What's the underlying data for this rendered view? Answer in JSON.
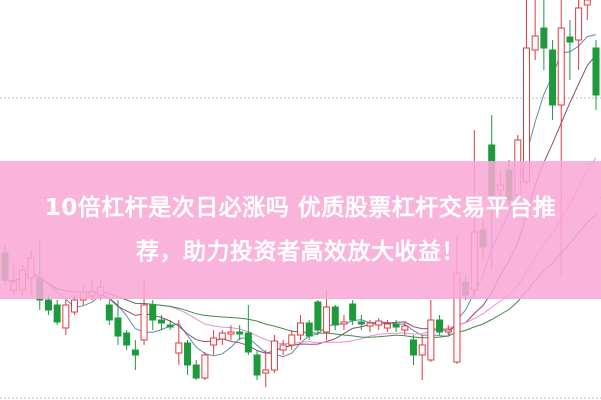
{
  "banner": {
    "line1": "10倍杠杆是次日必涨吗 优质股票杠杆交易平台推",
    "line2": "荐，助力投资者高效放大收益！"
  },
  "chart_data": {
    "type": "candlestick",
    "title": "",
    "xlabel": "",
    "ylabel": "",
    "ylim": [
      0,
      40
    ],
    "grid": true,
    "gridlines_y": [
      10,
      20,
      30
    ],
    "colors": {
      "up": "#e2393f",
      "down": "#1d9a3c",
      "grid": "#b9b9b9",
      "banner": "#f9a8d6"
    },
    "moving_averages": [
      {
        "period": 5,
        "color": "#5b8fa8"
      },
      {
        "period": 10,
        "color": "#8a4a78"
      },
      {
        "period": 20,
        "color": "#e98fd0"
      },
      {
        "period": 30,
        "color": "#3f8a4c"
      }
    ],
    "candles_ochl": [
      [
        14.7,
        12.0,
        15.5,
        11.5
      ],
      [
        11.0,
        11.8,
        13.5,
        10.5
      ],
      [
        11.0,
        13.0,
        13.5,
        10.5
      ],
      [
        12.2,
        14.2,
        15.0,
        10.5
      ],
      [
        12.2,
        10.0,
        16.0,
        9.0
      ],
      [
        10.0,
        9.0,
        10.5,
        8.5
      ],
      [
        9.5,
        7.8,
        10.0,
        7.5
      ],
      [
        7.2,
        9.5,
        10.0,
        6.5
      ],
      [
        8.8,
        10.0,
        10.5,
        8.5
      ],
      [
        10.0,
        10.8,
        11.5,
        9.5
      ],
      [
        10.4,
        10.8,
        12.0,
        10.0
      ],
      [
        10.5,
        11.3,
        12.0,
        10.0
      ],
      [
        9.5,
        8.0,
        10.0,
        7.5
      ],
      [
        8.2,
        6.4,
        10.0,
        5.5
      ],
      [
        6.7,
        5.5,
        7.0,
        5.0
      ],
      [
        5.0,
        4.5,
        6.0,
        3.0
      ],
      [
        6.0,
        9.5,
        12.0,
        5.5
      ],
      [
        9.5,
        8.0,
        10.0,
        7.0
      ],
      [
        8.0,
        7.7,
        8.5,
        7.0
      ],
      [
        7.5,
        7.3,
        8.0,
        7.0
      ],
      [
        4.7,
        5.7,
        8.0,
        3.5
      ],
      [
        5.7,
        3.5,
        6.0,
        2.5
      ],
      [
        3.5,
        2.2,
        4.0,
        2.0
      ],
      [
        2.2,
        4.5,
        4.8,
        2.0
      ],
      [
        5.5,
        6.2,
        7.0,
        4.5
      ],
      [
        6.1,
        6.7,
        7.0,
        5.5
      ],
      [
        6.6,
        6.8,
        7.5,
        6.0
      ],
      [
        6.8,
        6.6,
        7.5,
        6.0
      ],
      [
        6.7,
        4.8,
        9.5,
        4.5
      ],
      [
        4.5,
        2.5,
        5.0,
        2.0
      ],
      [
        2.7,
        3.0,
        5.0,
        1.3
      ],
      [
        3.0,
        5.9,
        6.5,
        2.7
      ],
      [
        5.0,
        5.5,
        6.0,
        4.5
      ],
      [
        5.5,
        6.5,
        7.0,
        5.0
      ],
      [
        6.5,
        7.7,
        8.5,
        6.0
      ],
      [
        7.7,
        6.4,
        8.0,
        6.0
      ],
      [
        9.8,
        7.0,
        10.0,
        6.5
      ],
      [
        6.8,
        9.3,
        11.0,
        6.0
      ],
      [
        9.3,
        7.5,
        9.5,
        7.0
      ],
      [
        7.6,
        7.8,
        8.5,
        7.0
      ],
      [
        9.6,
        8.0,
        10.0,
        7.5
      ],
      [
        7.8,
        7.6,
        8.5,
        7.0
      ],
      [
        7.4,
        7.7,
        8.0,
        6.8
      ],
      [
        7.5,
        7.9,
        8.2,
        7.0
      ],
      [
        7.2,
        7.6,
        8.0,
        6.8
      ],
      [
        7.6,
        7.3,
        8.0,
        6.8
      ],
      [
        7.0,
        7.4,
        7.8,
        6.5
      ],
      [
        6.0,
        4.5,
        6.5,
        3.5
      ],
      [
        4.5,
        5.5,
        6.5,
        2.0
      ],
      [
        4.0,
        8.0,
        10.0,
        3.8
      ],
      [
        8.0,
        6.8,
        8.5,
        6.5
      ],
      [
        6.8,
        7.0,
        7.5,
        6.5
      ],
      [
        3.8,
        12.7,
        16.5,
        3.6
      ],
      [
        11.8,
        10.5,
        12.5,
        10.0
      ],
      [
        11.0,
        16.8,
        27.0,
        10.5
      ],
      [
        17.0,
        15.3,
        18.0,
        14.0
      ],
      [
        25.5,
        20.5,
        28.5,
        13.0
      ],
      [
        21.0,
        21.5,
        23.0,
        20.0
      ],
      [
        23.0,
        20.0,
        24.0,
        19.5
      ],
      [
        20.5,
        26.0,
        26.5,
        20.0
      ],
      [
        21.8,
        35.2,
        40.0,
        21.5
      ],
      [
        35.0,
        36.4,
        40.0,
        34.0
      ],
      [
        37.2,
        35.2,
        40.0,
        33.0
      ],
      [
        35.0,
        29.5,
        36.0,
        28.0
      ],
      [
        29.5,
        37.2,
        40.0,
        12.5
      ],
      [
        36.3,
        35.8,
        38.0,
        32.0
      ],
      [
        36.0,
        39.2,
        40.0,
        33.0
      ],
      [
        39.5,
        40.0,
        40.0,
        38.0
      ],
      [
        35.2,
        30.5,
        36.0,
        29.0
      ]
    ]
  }
}
